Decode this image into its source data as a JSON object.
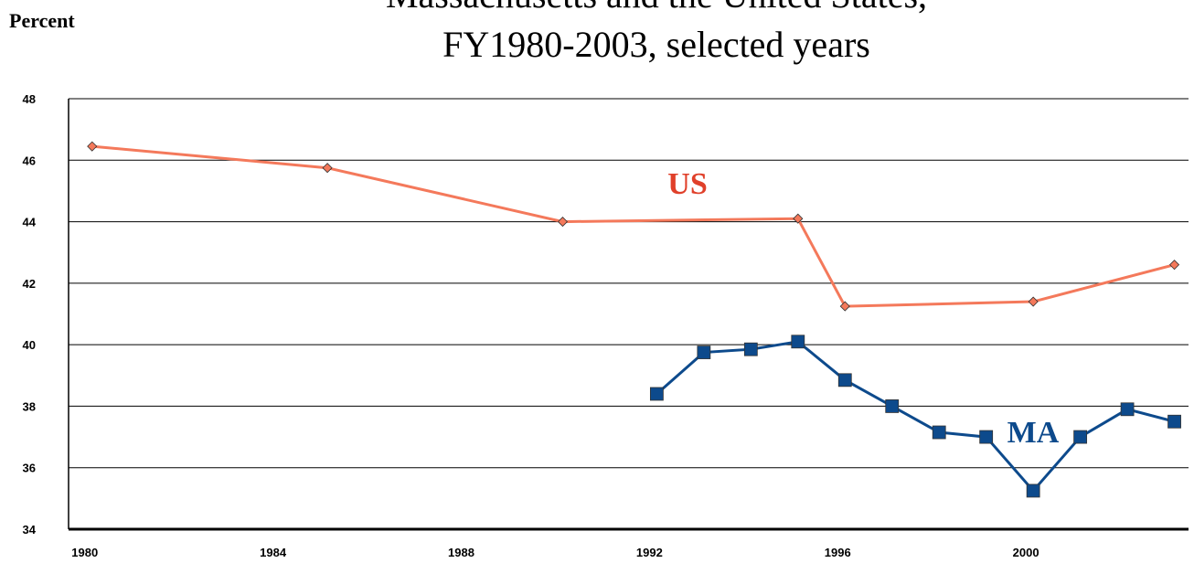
{
  "chart_data": {
    "type": "line",
    "title": [
      "Massachusetts and the United States,",
      "FY1980-2003, selected years"
    ],
    "y_label": "Percent",
    "xlim": [
      1979.5,
      2003.3
    ],
    "xticks": [
      1980,
      1984,
      1988,
      1992,
      1996,
      2000
    ],
    "ylim": [
      34,
      48
    ],
    "yticks": [
      34,
      36,
      38,
      40,
      42,
      44,
      46,
      48
    ],
    "grid": true,
    "series": [
      {
        "name": "US",
        "color": "#f4795b",
        "marker_color": "#f4795b",
        "marker": "diamond",
        "x": [
          1980,
          1985,
          1990,
          1995,
          1996,
          2000,
          2003
        ],
        "values": [
          46.45,
          45.75,
          44.0,
          44.1,
          41.25,
          41.4,
          42.6
        ]
      },
      {
        "name": "MA",
        "color": "#0d4a8c",
        "marker_color": "#0d4a8c",
        "marker": "square",
        "x": [
          1992,
          1993,
          1994,
          1995,
          1996,
          1997,
          1998,
          1999,
          2000,
          2001,
          2002,
          2003
        ],
        "values": [
          38.4,
          39.75,
          39.85,
          40.1,
          38.85,
          38.0,
          37.15,
          37.0,
          35.25,
          37.0,
          37.9,
          37.5
        ]
      }
    ]
  }
}
